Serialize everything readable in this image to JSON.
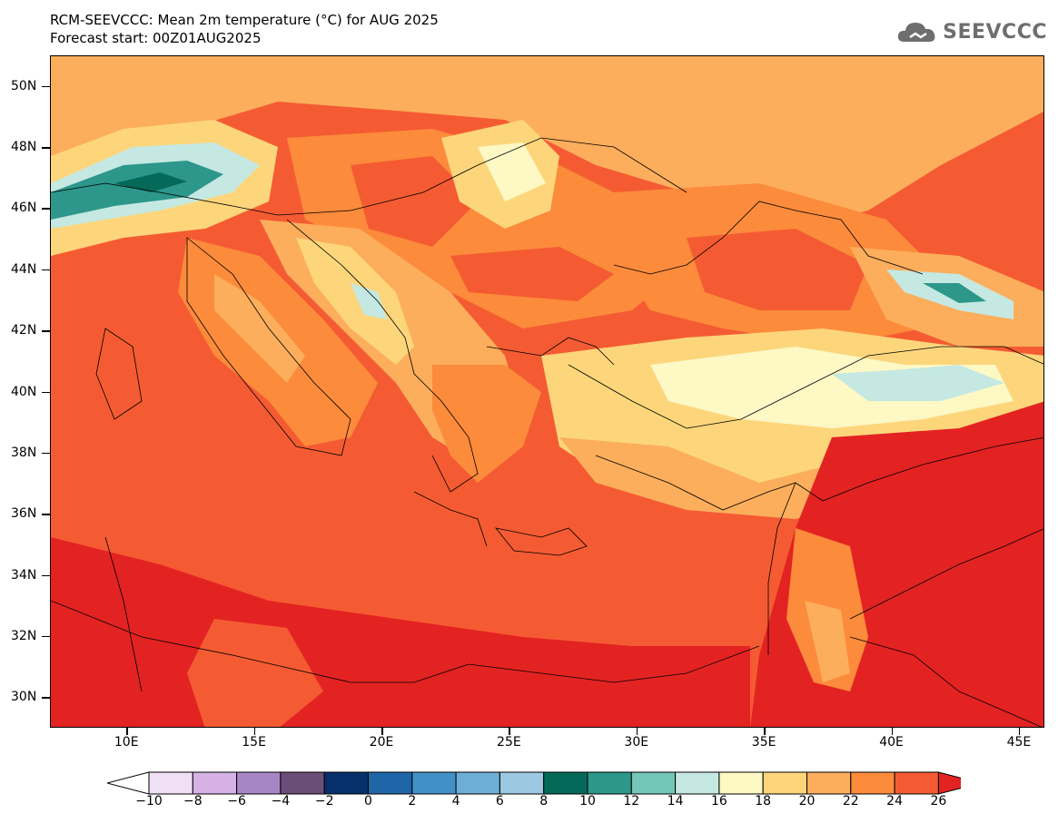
{
  "title": {
    "line1": "RCM-SEEVCCC: Mean 2m temperature (°C) for AUG 2025",
    "line2": "Forecast start: 00Z01AUG2025"
  },
  "logo": {
    "text": "SEEVCCC",
    "icon": "cloud-icon"
  },
  "map": {
    "lon_range": [
      7,
      46
    ],
    "lat_range": [
      29,
      51
    ],
    "lat_labels": [
      "30N",
      "32N",
      "34N",
      "36N",
      "38N",
      "40N",
      "42N",
      "44N",
      "46N",
      "48N",
      "50N"
    ],
    "lon_labels": [
      "10E",
      "15E",
      "20E",
      "25E",
      "30E",
      "35E",
      "40E",
      "45E"
    ],
    "base_color": "#f55b32"
  },
  "colorbar": {
    "labels": [
      "-10",
      "-8",
      "-6",
      "-4",
      "-2",
      "0",
      "2",
      "4",
      "6",
      "8",
      "10",
      "12",
      "14",
      "16",
      "18",
      "20",
      "22",
      "24",
      "26"
    ],
    "colors": [
      "#ffffff",
      "#efe0f5",
      "#d6b1e3",
      "#a886c6",
      "#6b4d79",
      "#06306b",
      "#1f66a8",
      "#4191c6",
      "#6caed6",
      "#9dc8e2",
      "#05695a",
      "#2c978a",
      "#74c6b8",
      "#c5e8e2",
      "#fdf8c4",
      "#fdd67c",
      "#fcae5c",
      "#fc8b3b",
      "#f55b32",
      "#e32322"
    ]
  }
}
